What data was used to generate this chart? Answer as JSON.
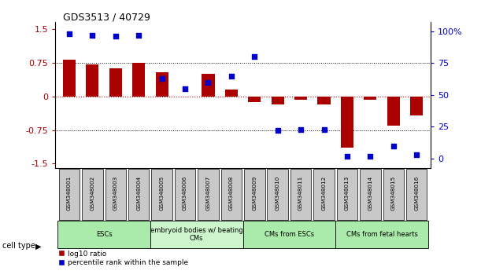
{
  "title": "GDS3513 / 40729",
  "samples": [
    "GSM348001",
    "GSM348002",
    "GSM348003",
    "GSM348004",
    "GSM348005",
    "GSM348006",
    "GSM348007",
    "GSM348008",
    "GSM348009",
    "GSM348010",
    "GSM348011",
    "GSM348012",
    "GSM348013",
    "GSM348014",
    "GSM348015",
    "GSM348016"
  ],
  "log10_ratio": [
    0.82,
    0.72,
    0.62,
    0.75,
    0.53,
    0.0,
    0.5,
    0.15,
    -0.12,
    -0.18,
    -0.08,
    -0.18,
    -1.15,
    -0.08,
    -0.65,
    -0.43
  ],
  "percentile_rank": [
    98,
    97,
    96,
    97,
    63,
    55,
    60,
    65,
    80,
    22,
    23,
    23,
    2,
    2,
    10,
    3
  ],
  "cell_type_groups": [
    {
      "label": "ESCs",
      "start": 0,
      "end": 3,
      "color": "#aaeaaa"
    },
    {
      "label": "embryoid bodies w/ beating\nCMs",
      "start": 4,
      "end": 7,
      "color": "#ccf5cc"
    },
    {
      "label": "CMs from ESCs",
      "start": 8,
      "end": 11,
      "color": "#aaeaaa"
    },
    {
      "label": "CMs from fetal hearts",
      "start": 12,
      "end": 15,
      "color": "#aaeaaa"
    }
  ],
  "bar_color": "#AA0000",
  "dot_color": "#0000CC",
  "ylim_left": [
    -1.6,
    1.65
  ],
  "ylim_right": [
    -7.47,
    107
  ],
  "yticks_left": [
    -1.5,
    -0.75,
    0.0,
    0.75,
    1.5
  ],
  "yticks_right": [
    0,
    25,
    50,
    75,
    100
  ],
  "ytick_labels_right": [
    "0",
    "25",
    "50",
    "75",
    "100%"
  ],
  "hlines_dotted": [
    -0.75,
    0.75
  ],
  "zero_line_color": "#AA0000",
  "bg_color": "#ffffff",
  "bar_width": 0.55,
  "dot_size": 18
}
